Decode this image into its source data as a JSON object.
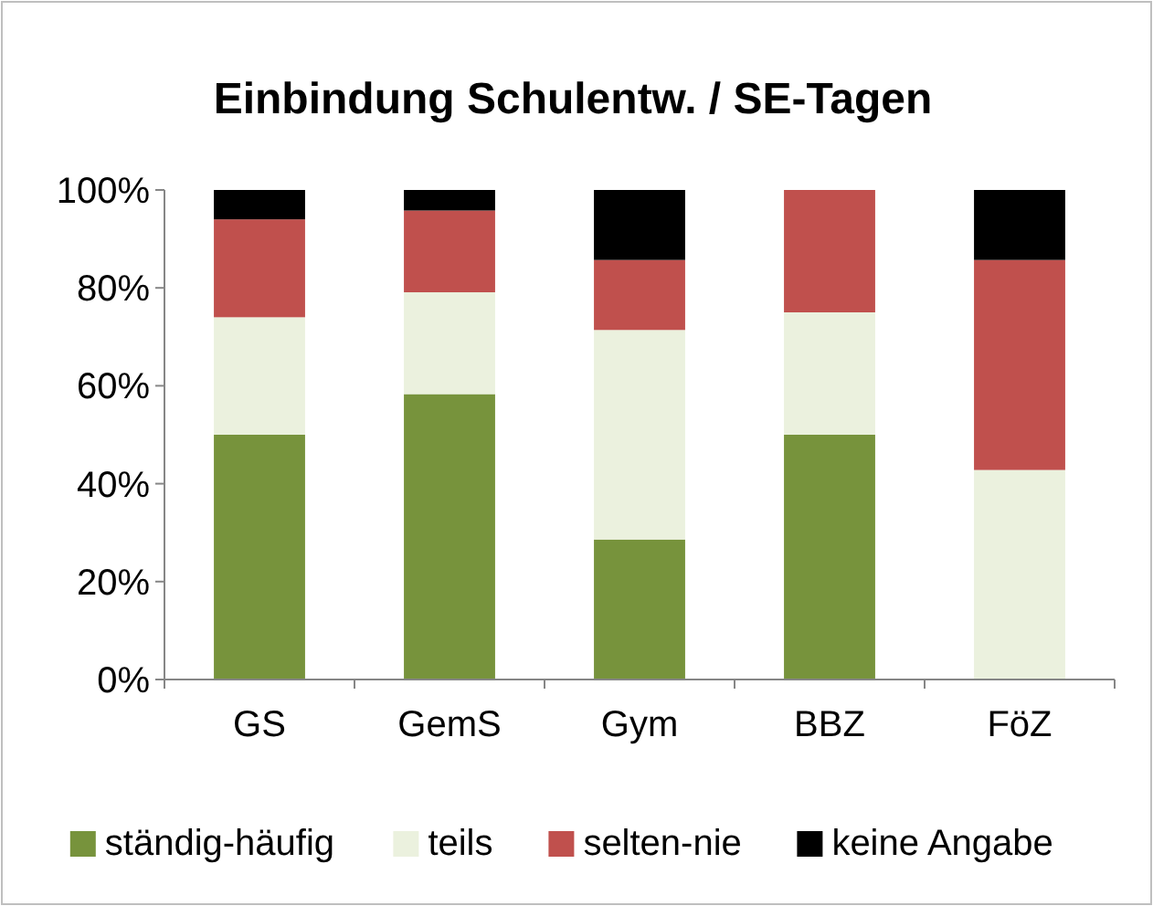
{
  "chart_data": {
    "type": "bar",
    "title": "Einbindung Schulentw. / SE-Tagen",
    "categories": [
      "GS",
      "GemS",
      "Gym",
      "BBZ",
      "FöZ"
    ],
    "stacked": true,
    "legend": "bottom",
    "ylim": [
      0,
      100
    ],
    "yticks": [
      {
        "value": 0,
        "label": "0%"
      },
      {
        "value": 20,
        "label": "20%"
      },
      {
        "value": 40,
        "label": "40%"
      },
      {
        "value": 60,
        "label": "60%"
      },
      {
        "value": 80,
        "label": "80%"
      },
      {
        "value": 100,
        "label": "100%"
      }
    ],
    "series": [
      {
        "name": "ständig-häufig",
        "color": "#77933c",
        "values": [
          50,
          58.3,
          28.6,
          50,
          0
        ]
      },
      {
        "name": "teils",
        "color": "#ebf1de",
        "values": [
          24,
          20.8,
          42.8,
          25,
          42.8
        ]
      },
      {
        "name": "selten-nie",
        "color": "#c0504d",
        "values": [
          20,
          16.7,
          14.3,
          25,
          42.9
        ]
      },
      {
        "name": "keine Angabe",
        "color": "#000000",
        "values": [
          6,
          4.2,
          14.3,
          0,
          14.3
        ]
      }
    ]
  }
}
